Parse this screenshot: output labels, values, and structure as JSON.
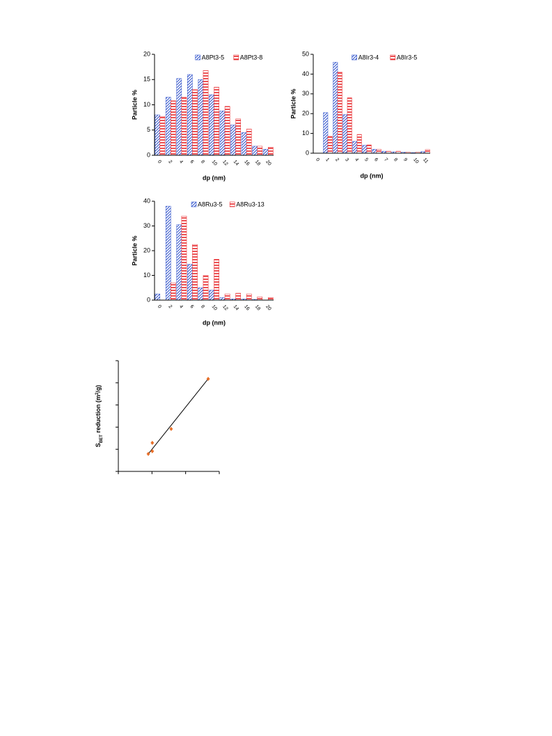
{
  "chart_data": [
    {
      "type": "bar",
      "ylabel": "Particle %",
      "xlabel": "dp (nm)",
      "categories": [
        "0",
        "2",
        "4",
        "6",
        "8",
        "10",
        "12",
        "14",
        "16",
        "18",
        "20"
      ],
      "series": [
        {
          "name": "A8Pt3-5",
          "color": "#3355cc",
          "pattern": "diagonal",
          "values": [
            8,
            11.5,
            15.2,
            16,
            15,
            12,
            8.8,
            6,
            4.5,
            1.8,
            1.2
          ]
        },
        {
          "name": "A8Pt3-8",
          "color": "#e8282c",
          "pattern": "horizontal",
          "values": [
            7.7,
            10.8,
            11.5,
            13,
            16.8,
            13.5,
            9.7,
            7.2,
            5.2,
            1.8,
            1.6
          ]
        }
      ],
      "ylim": [
        0,
        20
      ],
      "yticks": [
        0,
        5,
        10,
        15,
        20
      ],
      "legend": "upper right"
    },
    {
      "type": "bar",
      "ylabel": "Particle %",
      "xlabel": "dp (nm)",
      "categories": [
        "0",
        "1",
        "2",
        "3",
        "4",
        "5",
        "6",
        "7",
        "8",
        "9",
        "10",
        "11"
      ],
      "series": [
        {
          "name": "A8Ir3-4",
          "color": "#3355cc",
          "pattern": "diagonal",
          "values": [
            0,
            20.5,
            46,
            19.5,
            6,
            4,
            2,
            1,
            0.7,
            0.5,
            0.3,
            0.8
          ]
        },
        {
          "name": "A8Ir3-5",
          "color": "#e8282c",
          "pattern": "horizontal",
          "values": [
            0,
            8.5,
            41,
            28,
            9.5,
            4.2,
            2,
            1,
            1,
            0.5,
            0.5,
            1.8
          ]
        }
      ],
      "ylim": [
        0,
        50
      ],
      "yticks": [
        0,
        10,
        20,
        30,
        40,
        50
      ],
      "legend": "upper right"
    },
    {
      "type": "bar",
      "ylabel": "Particle %",
      "xlabel": "dp (nm)",
      "categories": [
        "0",
        "2",
        "4",
        "6",
        "8",
        "10",
        "12",
        "14",
        "16",
        "18",
        "20"
      ],
      "series": [
        {
          "name": "A8Ru3-5",
          "color": "#3355cc",
          "pattern": "diagonal",
          "values": [
            2.5,
            38,
            30.5,
            14.5,
            5,
            4,
            1,
            0.5,
            0.5,
            0.3,
            0
          ]
        },
        {
          "name": "A8Ru3-13",
          "color": "#e8282c",
          "pattern": "horizontal",
          "values": [
            0,
            7,
            34,
            22.5,
            10,
            16.5,
            2.5,
            2.8,
            2.5,
            1.3,
            1
          ]
        }
      ],
      "ylim": [
        0,
        40
      ],
      "yticks": [
        0,
        10,
        20,
        30,
        40
      ],
      "legend": "upper right"
    },
    {
      "type": "scatter",
      "ylabel": [
        "S",
        "BET",
        " reduction (m",
        "2",
        "/g)"
      ],
      "x": [
        0.89,
        1.01,
        1.01,
        1.57,
        2.67
      ],
      "y": [
        0.79,
        0.91,
        1.29,
        1.92,
        4.18
      ],
      "color": "#e8702a",
      "fit": {
        "x": [
          0.89,
          2.67
        ],
        "y": [
          0.79,
          4.18
        ],
        "color": "#000000"
      },
      "xlim": [
        0,
        3
      ],
      "xticks": [
        0,
        1,
        2,
        3
      ],
      "ylim": [
        0,
        5
      ],
      "yticks": [
        0,
        1,
        2,
        3,
        4,
        5
      ],
      "tick_labels": false
    }
  ]
}
